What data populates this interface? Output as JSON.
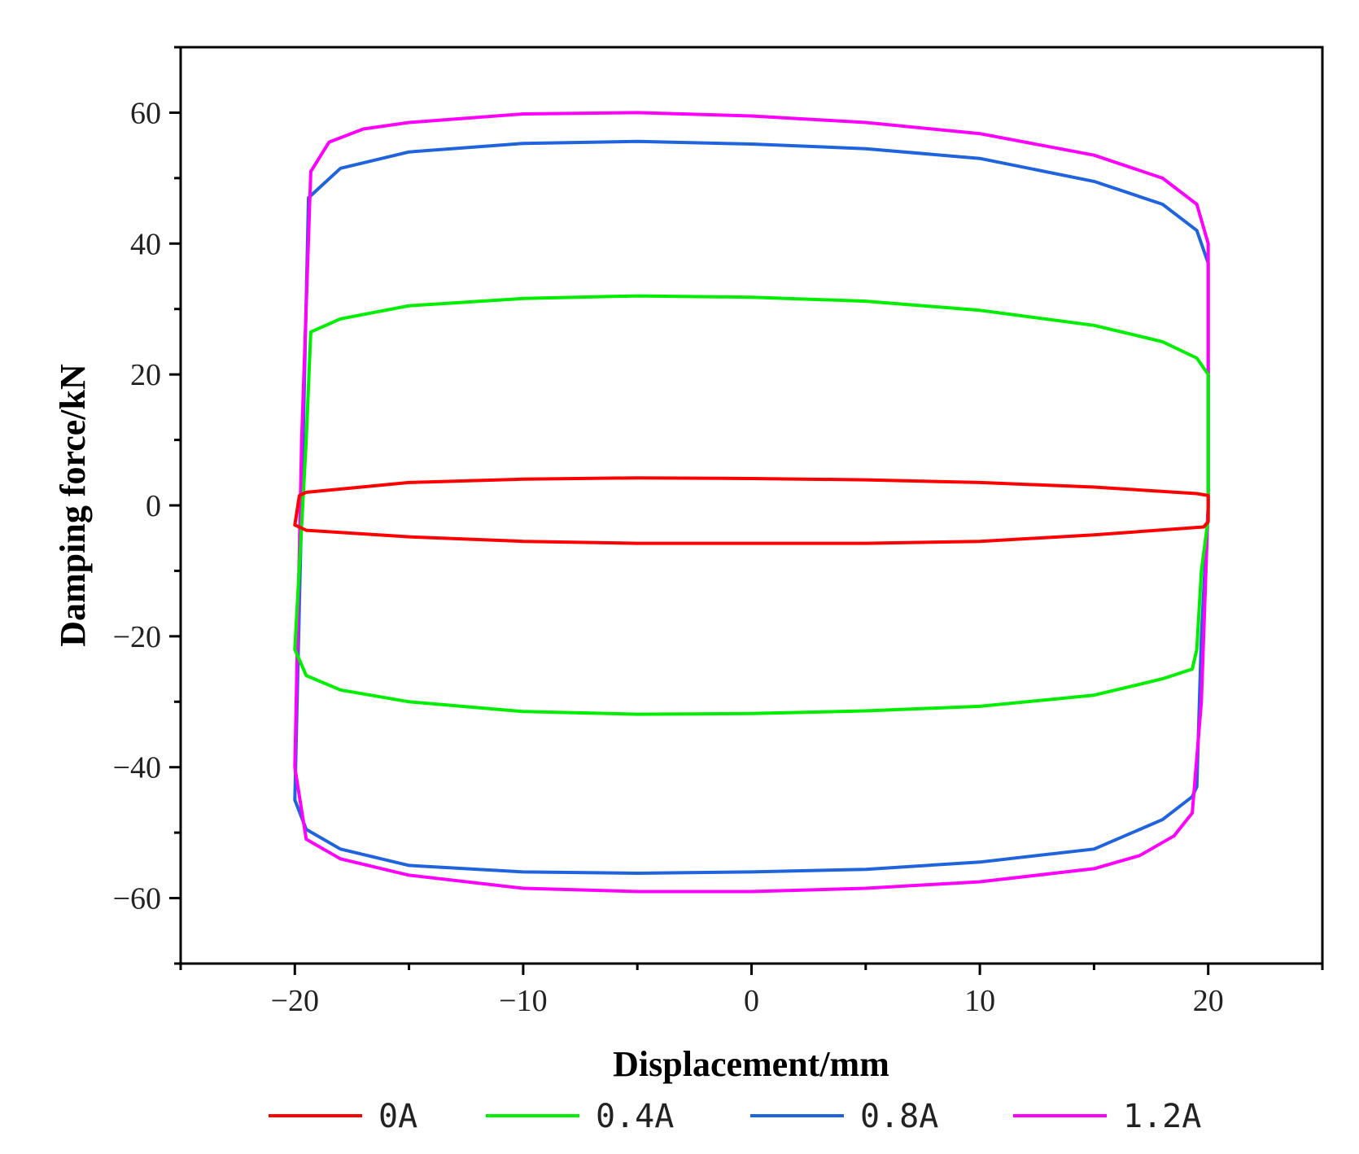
{
  "chart_data": {
    "type": "line",
    "title": "",
    "xlabel": "Displacement/mm",
    "ylabel": "Damping force/kN",
    "xlim": [
      -25,
      25
    ],
    "ylim": [
      -70,
      70
    ],
    "x_ticks": [
      -20,
      -10,
      0,
      10,
      20
    ],
    "x_tick_labels": [
      "−20",
      "−10",
      "0",
      "10",
      "20"
    ],
    "y_ticks": [
      -60,
      -40,
      -20,
      0,
      20,
      40,
      60
    ],
    "y_tick_labels": [
      "−60",
      "−40",
      "−20",
      "0",
      "20",
      "40",
      "60"
    ],
    "grid": false,
    "legend_position": "bottom",
    "series": [
      {
        "name": "0A",
        "color": "#ff0000",
        "x": [
          -20,
          -19.8,
          -19.5,
          -15,
          -10,
          -5,
          0,
          5,
          10,
          15,
          19.5,
          20,
          20,
          19.8,
          19,
          15,
          10,
          5,
          0,
          -5,
          -10,
          -15,
          -19.5,
          -20
        ],
        "y": [
          -3,
          1.5,
          2,
          3.5,
          4,
          4.2,
          4.1,
          3.9,
          3.5,
          2.8,
          1.8,
          1.5,
          -2.5,
          -3.3,
          -3.5,
          -4.5,
          -5.5,
          -5.8,
          -5.8,
          -5.8,
          -5.5,
          -4.8,
          -3.8,
          -3
        ]
      },
      {
        "name": "0.4A",
        "color": "#00ee00",
        "x": [
          -20,
          -19.7,
          -19.5,
          -19.3,
          -18,
          -15,
          -10,
          -5,
          0,
          5,
          10,
          15,
          18,
          19.5,
          20,
          20,
          19.7,
          19.5,
          19.3,
          18,
          15,
          10,
          5,
          0,
          -5,
          -10,
          -15,
          -18,
          -19.5,
          -20
        ],
        "y": [
          -22,
          -3,
          10,
          26.5,
          28.5,
          30.5,
          31.6,
          32,
          31.8,
          31.2,
          29.8,
          27.5,
          25,
          22.5,
          20,
          -2,
          -10,
          -22,
          -25,
          -26.5,
          -29,
          -30.7,
          -31.4,
          -31.8,
          -31.9,
          -31.5,
          -30,
          -28.2,
          -26,
          -22
        ]
      },
      {
        "name": "0.8A",
        "color": "#1f63dd",
        "x": [
          -20,
          -19.7,
          -19.4,
          -18,
          -15,
          -10,
          -5,
          0,
          5,
          10,
          15,
          18,
          19.5,
          20,
          20,
          19.7,
          19.5,
          19.3,
          18,
          15,
          10,
          5,
          0,
          -5,
          -10,
          -15,
          -18,
          -19.5,
          -20
        ],
        "y": [
          -45,
          0,
          47,
          51.5,
          54,
          55.3,
          55.6,
          55.2,
          54.5,
          53,
          49.5,
          46,
          42,
          37,
          0,
          -20,
          -43,
          -44.5,
          -48,
          -52.5,
          -54.5,
          -55.6,
          -56,
          -56.2,
          -56,
          -55,
          -52.5,
          -49.5,
          -45
        ]
      },
      {
        "name": "1.2A",
        "color": "#ff00ff",
        "x": [
          -20,
          -19.7,
          -19.3,
          -18.5,
          -17,
          -15,
          -10,
          -5,
          0,
          5,
          10,
          15,
          18,
          19.5,
          20,
          20,
          19.7,
          19.3,
          18.5,
          17,
          15,
          10,
          5,
          0,
          -5,
          -10,
          -15,
          -18,
          -19.5,
          -20
        ],
        "y": [
          -40,
          10,
          51,
          55.5,
          57.5,
          58.5,
          59.8,
          60,
          59.5,
          58.5,
          56.8,
          53.5,
          50,
          46,
          40,
          0,
          -30,
          -47,
          -50.5,
          -53.5,
          -55.5,
          -57.5,
          -58.5,
          -59,
          -59,
          -58.5,
          -56.5,
          -54,
          -51,
          -40
        ]
      }
    ]
  }
}
